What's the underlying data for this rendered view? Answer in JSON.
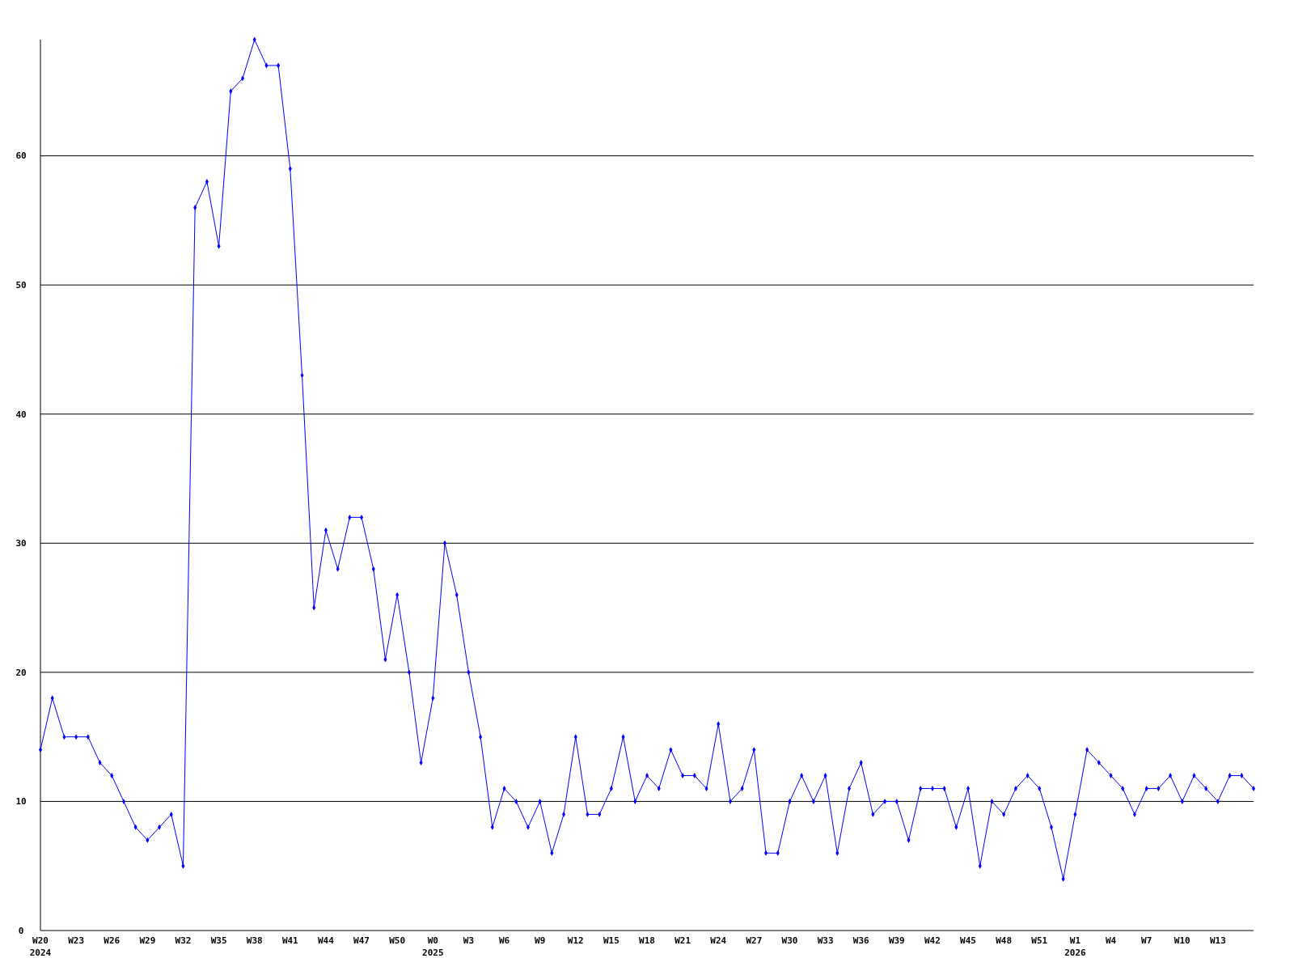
{
  "chart_data": {
    "type": "line",
    "categories": [
      "W20\n2024",
      null,
      null,
      "W23",
      null,
      null,
      "W26",
      null,
      null,
      "W29",
      null,
      null,
      "W32",
      null,
      null,
      "W35",
      null,
      null,
      "W38",
      null,
      null,
      "W41",
      null,
      null,
      "W44",
      null,
      null,
      "W47",
      null,
      null,
      "W50",
      null,
      null,
      "W0\n2025",
      null,
      null,
      "W3",
      null,
      null,
      "W6",
      null,
      null,
      "W9",
      null,
      null,
      "W12",
      null,
      null,
      "W15",
      null,
      null,
      "W18",
      null,
      null,
      "W21",
      null,
      null,
      "W24",
      null,
      null,
      "W27",
      null,
      null,
      "W30",
      null,
      null,
      "W33",
      null,
      null,
      "W36",
      null,
      null,
      "W39",
      null,
      null,
      "W42",
      null,
      null,
      "W45",
      null,
      null,
      "W48",
      null,
      null,
      "W51",
      null,
      null,
      "W1\n2026",
      null,
      null,
      "W4",
      null,
      null,
      "W7",
      null,
      null,
      "W10",
      null,
      null,
      "W13",
      null,
      null,
      null
    ],
    "series": [
      {
        "color": "#0000ff",
        "values": [
          14,
          18,
          15,
          15,
          15,
          13,
          12,
          10,
          8,
          7,
          8,
          9,
          5,
          56,
          58,
          53,
          65,
          66,
          69,
          67,
          67,
          59,
          43,
          25,
          31,
          28,
          32,
          32,
          28,
          21,
          26,
          20,
          13,
          18,
          30,
          26,
          20,
          15,
          8,
          11,
          10,
          8,
          10,
          6,
          9,
          15,
          9,
          9,
          11,
          15,
          10,
          12,
          11,
          14,
          12,
          12,
          11,
          16,
          10,
          11,
          14,
          6,
          6,
          10,
          12,
          10,
          12,
          6,
          11,
          13,
          9,
          10,
          10,
          7,
          11,
          11,
          11,
          8,
          11,
          5,
          10,
          9,
          11,
          12,
          11,
          8,
          4,
          9,
          14,
          13,
          12,
          11,
          9,
          11,
          11,
          12,
          10,
          12,
          11,
          10,
          12,
          12,
          11
        ]
      }
    ],
    "ylim": [
      0,
      69
    ],
    "yticks": [
      0,
      10,
      20,
      30,
      40,
      50,
      60
    ],
    "grid": "y",
    "marker": "diamond",
    "line_style": "solid"
  }
}
